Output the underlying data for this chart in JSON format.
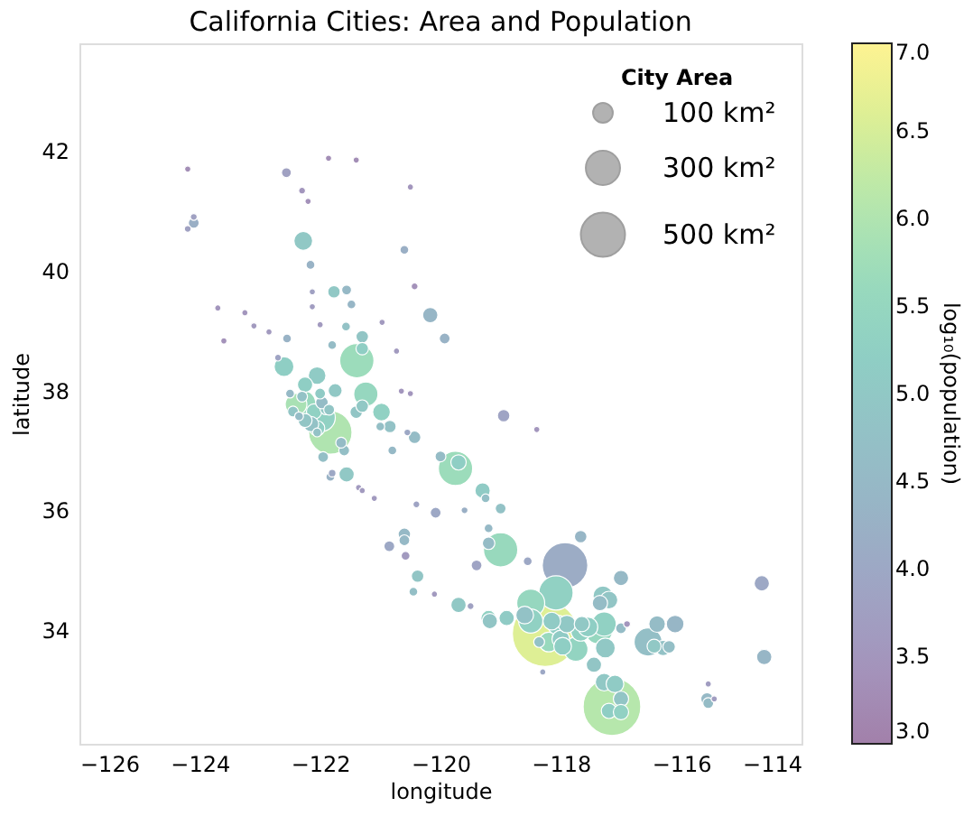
{
  "chart_data": {
    "type": "bubble",
    "title": "California Cities: Area and Population",
    "xlabel": "longitude",
    "ylabel": "latitude",
    "legend_title": "City Area",
    "clabel": "log₁₀(population)",
    "grid": false,
    "marker": "circle",
    "xlim": [
      -126,
      -114
    ],
    "ylim": [
      32.1,
      43.8
    ],
    "xticks": [
      {
        "value": -126,
        "label": "−126"
      },
      {
        "value": -124,
        "label": "−124"
      },
      {
        "value": -122,
        "label": "−122"
      },
      {
        "value": -120,
        "label": "−120"
      },
      {
        "value": -118,
        "label": "−118"
      },
      {
        "value": -116,
        "label": "−116"
      },
      {
        "value": -114,
        "label": "−114"
      }
    ],
    "yticks": [
      34,
      36,
      38,
      40,
      42
    ],
    "clim": [
      3,
      7
    ],
    "cticks": [
      {
        "value": 3,
        "label": "3.0"
      },
      {
        "value": 3.5,
        "label": "3.5"
      },
      {
        "value": 4,
        "label": "4.0"
      },
      {
        "value": 4.5,
        "label": "4.5"
      },
      {
        "value": 5,
        "label": "5.0"
      },
      {
        "value": 5.5,
        "label": "5.5"
      },
      {
        "value": 6,
        "label": "6.0"
      },
      {
        "value": 6.5,
        "label": "6.5"
      },
      {
        "value": 7,
        "label": "7.0"
      }
    ],
    "size_legend": [
      {
        "value": 100,
        "label": "100 km²"
      },
      {
        "value": 300,
        "label": "300 km²"
      },
      {
        "value": 500,
        "label": "500 km²"
      }
    ],
    "x": [
      -124.2,
      -124.1,
      -124.2,
      -124.1,
      -122.56,
      -121.86,
      -121.4,
      -122.3,
      -122.2,
      -120.5,
      -122.28,
      -122.16,
      -120.6,
      -121.77,
      -121.56,
      -121.48,
      -122.13,
      -122.13,
      -120.43,
      -120.17,
      -119.93,
      -121.57,
      -122.0,
      -123.7,
      -123.25,
      -123.1,
      -122.85,
      -123.6,
      -122.55,
      -120.97,
      -120.73,
      -121.3,
      -121.39,
      -121.3,
      -121.24,
      -121.8,
      -122.6,
      -120.65,
      -120.5,
      -122.7,
      -122.4,
      -122.27,
      -122.0,
      -121.9,
      -122.1,
      -121.98,
      -121.83,
      -122.05,
      -122.15,
      -122.25,
      -122.45,
      -122.3,
      -122.5,
      -122.25,
      -122.05,
      -121.75,
      -121.85,
      -121.97,
      -122.35,
      -122.05,
      -121.6,
      -121.65,
      -121.95,
      -121.56,
      -121.83,
      -121.8,
      -121.36,
      -121.3,
      -121.1,
      -121.4,
      -121.3,
      -121.0,
      -120.98,
      -120.84,
      -120.55,
      -120.43,
      -120.8,
      -120.0,
      -119.75,
      -119.7,
      -119.3,
      -119.25,
      -119.0,
      -120.08,
      -120.4,
      -119.6,
      -119.2,
      -119.2,
      -119.0,
      -119.4,
      -118.95,
      -118.4,
      -120.6,
      -120.6,
      -120.85,
      -120.58,
      -120.38,
      -120.45,
      -120.1,
      -119.7,
      -119.5,
      -119.2,
      -119.18,
      -118.9,
      -118.6,
      -118.5,
      -118.08,
      -117.93,
      -118.55,
      -117.67,
      -117.0,
      -117.3,
      -117.2,
      -117.35,
      -118.26,
      -118.5,
      -117.37,
      -117.28,
      -117.67,
      -117.55,
      -118.0,
      -117.75,
      -117.97,
      -118.2,
      -118.36,
      -118.3,
      -117.45,
      -117.26,
      -117.0,
      -116.9,
      -116.55,
      -116.4,
      -116.1,
      -116.3,
      -116.45,
      -116.2,
      -117.28,
      -117.1,
      -117.15,
      -117.2,
      -117.0,
      -117.0,
      -114.66,
      -114.62,
      -115.55,
      -115.57,
      -115.55,
      -115.45,
      -118.05,
      -117.9,
      -118.15,
      -117.65
    ],
    "values": [
      41.7,
      40.8,
      40.7,
      40.9,
      41.64,
      41.88,
      41.85,
      41.34,
      41.16,
      41.4,
      40.5,
      40.1,
      40.35,
      39.65,
      39.68,
      39.44,
      39.65,
      39.4,
      39.74,
      39.26,
      38.87,
      39.07,
      39.1,
      39.38,
      39.3,
      39.08,
      38.98,
      38.83,
      38.87,
      39.14,
      38.66,
      38.9,
      38.5,
      38.7,
      37.94,
      38.76,
      38.4,
      37.99,
      37.95,
      38.55,
      37.77,
      37.8,
      37.95,
      37.7,
      37.65,
      37.55,
      37.3,
      37.37,
      37.44,
      37.5,
      37.65,
      37.9,
      37.95,
      38.1,
      38.25,
      38.0,
      37.68,
      37.8,
      37.57,
      37.3,
      37.0,
      37.13,
      36.89,
      36.6,
      36.56,
      36.62,
      36.38,
      36.33,
      36.2,
      37.64,
      37.74,
      37.4,
      37.64,
      37.4,
      37.3,
      37.22,
      37.0,
      36.9,
      36.7,
      36.8,
      36.33,
      36.2,
      36.03,
      35.96,
      36.1,
      36.0,
      35.7,
      35.45,
      35.34,
      35.08,
      37.58,
      37.35,
      35.6,
      35.5,
      35.4,
      35.24,
      34.9,
      34.64,
      34.6,
      34.42,
      34.4,
      34.2,
      34.15,
      34.2,
      34.25,
      34.45,
      34.62,
      35.08,
      35.15,
      35.56,
      34.87,
      34.57,
      34.5,
      34.45,
      33.94,
      34.15,
      34.0,
      34.1,
      33.98,
      34.05,
      33.85,
      33.68,
      33.73,
      33.8,
      33.8,
      33.3,
      33.42,
      33.7,
      34.03,
      34.1,
      33.8,
      34.1,
      34.1,
      33.7,
      33.73,
      33.72,
      33.13,
      33.1,
      32.72,
      32.65,
      32.85,
      32.63,
      34.78,
      33.55,
      33.1,
      32.85,
      32.78,
      32.85,
      34.08,
      34.1,
      34.15,
      34.1
    ],
    "sizes": [
      10,
      30,
      12,
      12,
      25,
      10,
      10,
      12,
      10,
      10,
      90,
      20,
      20,
      40,
      25,
      20,
      10,
      10,
      12,
      60,
      30,
      20,
      10,
      10,
      10,
      10,
      10,
      10,
      20,
      10,
      10,
      40,
      300,
      40,
      150,
      20,
      100,
      10,
      10,
      12,
      120,
      140,
      30,
      40,
      60,
      200,
      480,
      60,
      60,
      50,
      30,
      30,
      20,
      60,
      80,
      50,
      30,
      40,
      20,
      20,
      30,
      30,
      30,
      60,
      20,
      15,
      10,
      10,
      10,
      40,
      40,
      20,
      80,
      40,
      12,
      40,
      20,
      30,
      300,
      60,
      60,
      20,
      30,
      30,
      12,
      12,
      20,
      40,
      300,
      30,
      40,
      10,
      40,
      30,
      30,
      20,
      40,
      20,
      10,
      60,
      12,
      60,
      60,
      60,
      80,
      200,
      300,
      530,
      20,
      40,
      60,
      100,
      80,
      60,
      1100,
      150,
      200,
      150,
      100,
      100,
      80,
      150,
      80,
      100,
      30,
      10,
      60,
      100,
      30,
      12,
      200,
      70,
      80,
      60,
      50,
      40,
      80,
      80,
      850,
      60,
      60,
      60,
      60,
      60,
      10,
      40,
      30,
      10,
      100,
      80,
      80,
      60
    ],
    "cvalues": [
      3.3,
      4.2,
      3.8,
      3.8,
      3.8,
      3.3,
      3.3,
      3.5,
      3.4,
      3.5,
      5.0,
      4.3,
      4.2,
      5.0,
      4.5,
      4.4,
      3.8,
      3.7,
      3.4,
      4.4,
      4.3,
      4.8,
      3.6,
      3.5,
      3.5,
      3.6,
      3.6,
      3.4,
      4.3,
      3.6,
      3.6,
      4.9,
      5.7,
      5.2,
      5.5,
      4.6,
      5.2,
      3.5,
      3.5,
      3.9,
      5.9,
      5.6,
      5.1,
      5.0,
      5.3,
      5.3,
      6.0,
      5.2,
      4.8,
      4.9,
      4.9,
      4.8,
      4.5,
      5.2,
      5.1,
      5.0,
      4.9,
      4.6,
      4.6,
      4.8,
      4.7,
      4.6,
      4.7,
      5.0,
      4.3,
      4.0,
      3.6,
      3.6,
      3.6,
      4.9,
      5.0,
      4.7,
      5.3,
      4.8,
      4.0,
      4.6,
      4.5,
      4.6,
      5.7,
      5.2,
      5.1,
      4.7,
      4.8,
      4.0,
      3.9,
      4.2,
      4.5,
      4.6,
      5.6,
      3.9,
      3.9,
      3.5,
      4.5,
      4.5,
      4.0,
      3.6,
      4.9,
      4.7,
      3.6,
      5.0,
      3.8,
      5.3,
      4.9,
      5.1,
      4.8,
      5.5,
      5.3,
      4.1,
      4.0,
      4.4,
      4.5,
      5.0,
      4.9,
      4.6,
      6.6,
      5.3,
      5.5,
      5.3,
      5.3,
      5.2,
      5.1,
      5.4,
      5.2,
      5.6,
      4.8,
      4.0,
      4.9,
      5.0,
      4.6,
      3.5,
      4.7,
      4.6,
      4.4,
      4.8,
      5.0,
      4.7,
      5.0,
      5.1,
      6.1,
      5.2,
      4.9,
      5.3,
      4.0,
      4.4,
      3.7,
      4.5,
      4.6,
      3.7,
      5.2,
      5.0,
      5.1,
      5.0
    ]
  }
}
